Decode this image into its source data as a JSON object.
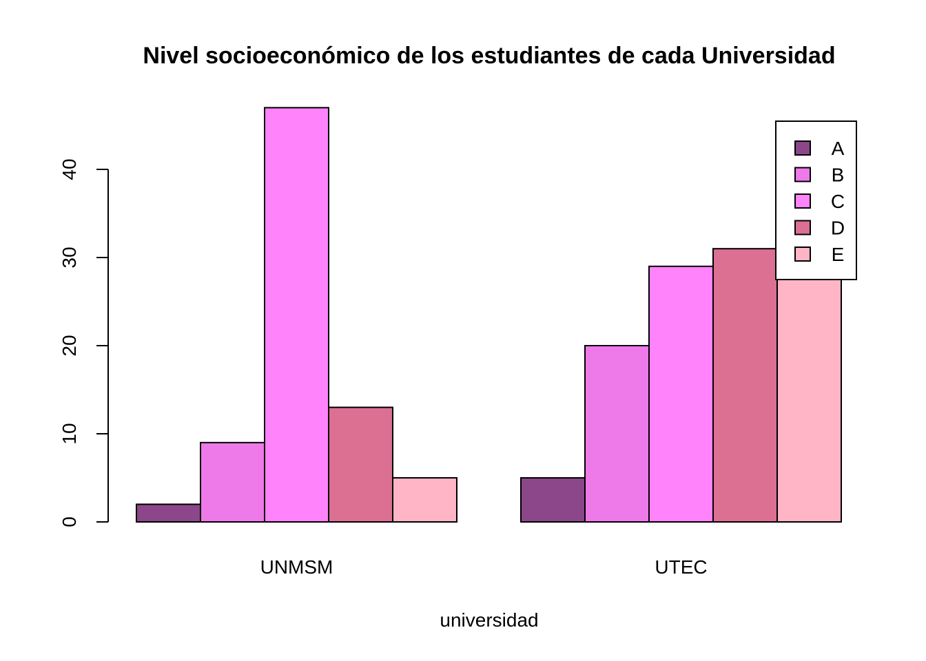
{
  "chart_data": {
    "type": "bar",
    "title": "Nivel socioeconómico de los estudiantes de cada Universidad",
    "xlabel": "universidad",
    "ylabel": "",
    "categories": [
      "UNMSM",
      "UTEC"
    ],
    "series": [
      {
        "name": "A",
        "color": "#8B4789",
        "values": [
          2,
          5
        ]
      },
      {
        "name": "B",
        "color": "#EE7AE9",
        "values": [
          9,
          20
        ]
      },
      {
        "name": "C",
        "color": "#FF83FA",
        "values": [
          47,
          29
        ]
      },
      {
        "name": "D",
        "color": "#DB7093",
        "values": [
          13,
          31
        ]
      },
      {
        "name": "E",
        "color": "#FFB5C5",
        "values": [
          5,
          28
        ]
      }
    ],
    "ylim": [
      0,
      47
    ],
    "yticks": [
      0,
      10,
      20,
      30,
      40
    ],
    "ytick_labels": [
      "0",
      "10",
      "20",
      "30",
      "40"
    ],
    "grid": false,
    "legend_position": "top-right"
  }
}
